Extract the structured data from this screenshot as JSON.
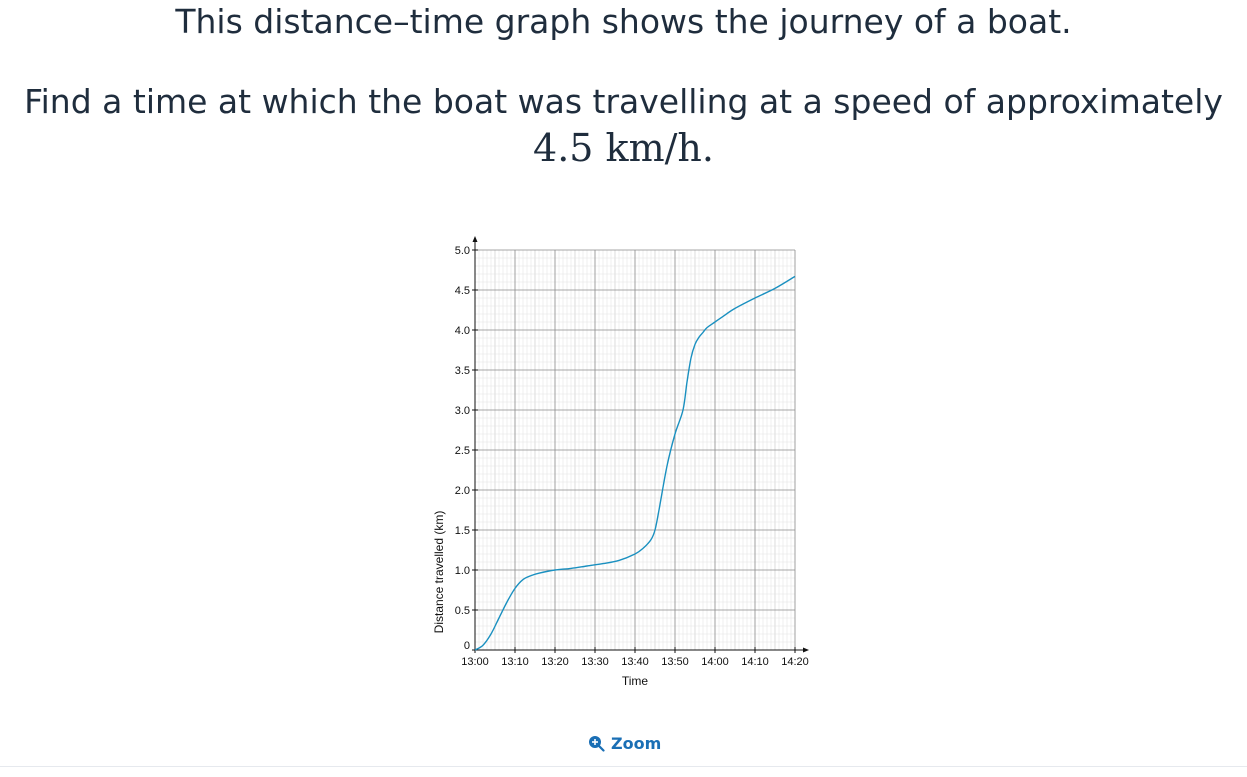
{
  "question": {
    "line1": "This distance–time graph shows the journey of a boat.",
    "line2": "Find a time at which the boat was travelling at a speed of approximately",
    "line3": "4.5 km/h."
  },
  "zoom": {
    "label": "Zoom",
    "icon": "zoom-in-icon"
  },
  "colors": {
    "curve": "#1a90c0",
    "text": "#1f2d3d",
    "link": "#1a6fb5"
  },
  "chart_data": {
    "type": "line",
    "title": "",
    "xlabel": "Time",
    "ylabel": "Distance travelled (km)",
    "x_tick_labels": [
      "13:00",
      "13:10",
      "13:20",
      "13:30",
      "13:40",
      "13:50",
      "14:00",
      "14:10",
      "14:20"
    ],
    "y_tick_labels": [
      "0",
      "0.5",
      "1.0",
      "1.5",
      "2.0",
      "2.5",
      "3.0",
      "3.5",
      "4.0",
      "4.5",
      "5.0"
    ],
    "xlim_minutes_after_1300": [
      0,
      80
    ],
    "ylim": [
      0,
      5.0
    ],
    "grid": true,
    "series": [
      {
        "x": [
          "13:00",
          "13:02",
          "13:04",
          "13:06",
          "13:08",
          "13:10",
          "13:12",
          "13:14",
          "13:16",
          "13:20",
          "13:24",
          "13:28",
          "13:32",
          "13:36",
          "13:40",
          "13:42",
          "13:44",
          "13:45",
          "13:46",
          "13:48",
          "13:50",
          "13:52",
          "13:53",
          "13:54",
          "13:55",
          "13:56",
          "13:57",
          "13:58",
          "14:00",
          "14:02",
          "14:05",
          "14:10",
          "14:15",
          "14:20"
        ],
        "y": [
          0,
          0.06,
          0.2,
          0.4,
          0.6,
          0.77,
          0.88,
          0.93,
          0.96,
          1.0,
          1.02,
          1.05,
          1.08,
          1.12,
          1.2,
          1.27,
          1.38,
          1.5,
          1.75,
          2.3,
          2.7,
          3.0,
          3.35,
          3.65,
          3.82,
          3.91,
          3.97,
          4.03,
          4.1,
          4.17,
          4.27,
          4.4,
          4.52,
          4.67
        ]
      }
    ]
  }
}
